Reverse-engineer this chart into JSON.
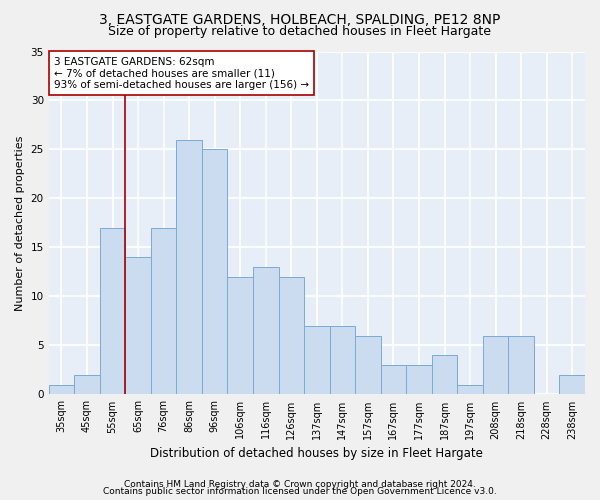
{
  "title": "3, EASTGATE GARDENS, HOLBEACH, SPALDING, PE12 8NP",
  "subtitle": "Size of property relative to detached houses in Fleet Hargate",
  "xlabel": "Distribution of detached houses by size in Fleet Hargate",
  "ylabel": "Number of detached properties",
  "footer_line1": "Contains HM Land Registry data © Crown copyright and database right 2024.",
  "footer_line2": "Contains public sector information licensed under the Open Government Licence v3.0.",
  "categories": [
    "35sqm",
    "45sqm",
    "55sqm",
    "65sqm",
    "76sqm",
    "86sqm",
    "96sqm",
    "106sqm",
    "116sqm",
    "126sqm",
    "137sqm",
    "147sqm",
    "157sqm",
    "167sqm",
    "177sqm",
    "187sqm",
    "197sqm",
    "208sqm",
    "218sqm",
    "228sqm",
    "238sqm"
  ],
  "values": [
    1,
    2,
    17,
    14,
    17,
    26,
    25,
    12,
    13,
    12,
    7,
    7,
    6,
    3,
    3,
    4,
    1,
    6,
    6,
    0,
    2
  ],
  "bar_color": "#ccdcf0",
  "bar_edge_color": "#7aaad4",
  "annotation_box_text": "3 EASTGATE GARDENS: 62sqm\n← 7% of detached houses are smaller (11)\n93% of semi-detached houses are larger (156) →",
  "vline_x": 2.5,
  "vline_color": "#aa0000",
  "ylim": [
    0,
    35
  ],
  "yticks": [
    0,
    5,
    10,
    15,
    20,
    25,
    30,
    35
  ],
  "background_color": "#e8eef8",
  "grid_color": "#ffffff",
  "fig_background": "#f0f0f0",
  "title_fontsize": 10,
  "subtitle_fontsize": 9,
  "annotation_fontsize": 7.5,
  "tick_fontsize": 7,
  "ylabel_fontsize": 8,
  "xlabel_fontsize": 8.5
}
